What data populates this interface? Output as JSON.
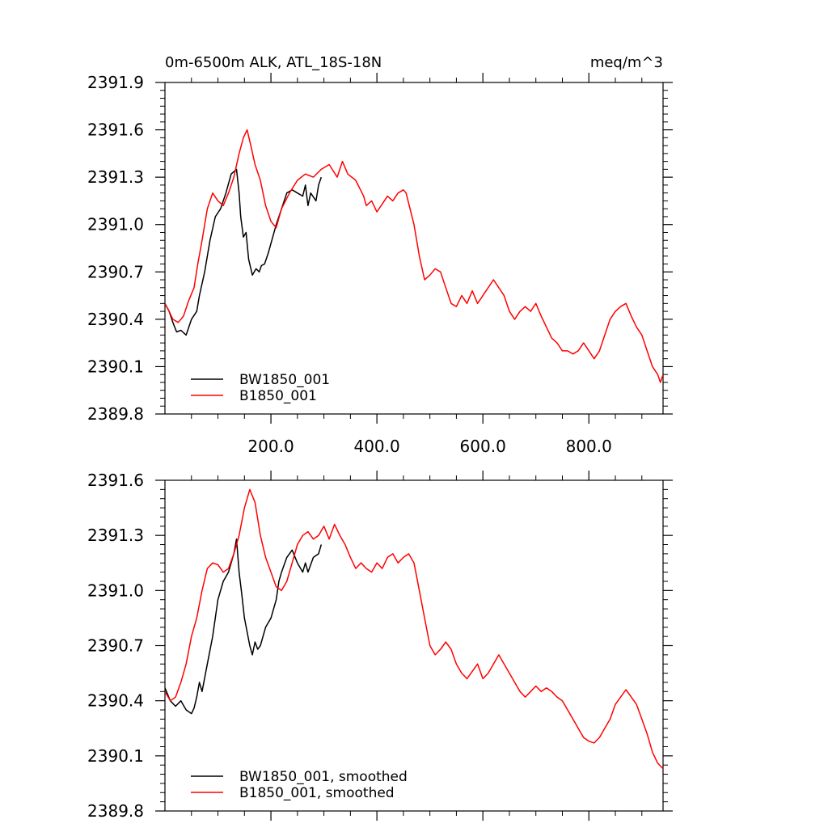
{
  "chart_data": [
    {
      "type": "line",
      "title": "0m-6500m ALK, ATL_18S-18N",
      "units": "meq/m^3",
      "xlim": [
        0,
        940
      ],
      "ylim": [
        2389.8,
        2391.9
      ],
      "x_ticks": [
        200,
        400,
        600,
        800
      ],
      "x_tick_labels": [
        "200.0",
        "400.0",
        "600.0",
        "800.0"
      ],
      "y_ticks": [
        2389.8,
        2390.1,
        2390.4,
        2390.7,
        2391.0,
        2391.3,
        2391.6,
        2391.9
      ],
      "y_tick_labels": [
        "2389.8",
        "2390.1",
        "2390.4",
        "2390.7",
        "2391.0",
        "2391.3",
        "2391.6",
        "2391.9"
      ],
      "legend_position": "bottom-left",
      "series": [
        {
          "name": "BW1850_001",
          "color": "#000000",
          "x": [
            0,
            8,
            15,
            22,
            30,
            40,
            50,
            60,
            65,
            75,
            85,
            95,
            105,
            115,
            125,
            135,
            140,
            143,
            148,
            153,
            158,
            165,
            172,
            178,
            182,
            188,
            195,
            200,
            210,
            220,
            230,
            240,
            250,
            260,
            265,
            270,
            275,
            285,
            290,
            295
          ],
          "y": [
            2390.5,
            2390.45,
            2390.38,
            2390.32,
            2390.33,
            2390.3,
            2390.4,
            2390.45,
            2390.55,
            2390.7,
            2390.9,
            2391.05,
            2391.1,
            2391.2,
            2391.32,
            2391.35,
            2391.2,
            2391.05,
            2390.92,
            2390.95,
            2390.78,
            2390.68,
            2390.72,
            2390.7,
            2390.74,
            2390.75,
            2390.82,
            2390.88,
            2391.0,
            2391.1,
            2391.2,
            2391.22,
            2391.2,
            2391.18,
            2391.25,
            2391.12,
            2391.2,
            2391.15,
            2391.25,
            2391.3
          ]
        },
        {
          "name": "B1850_001",
          "color": "#ff0000",
          "x": [
            0,
            8,
            15,
            25,
            35,
            45,
            55,
            62,
            70,
            80,
            90,
            100,
            110,
            120,
            130,
            140,
            148,
            155,
            162,
            170,
            180,
            190,
            200,
            210,
            220,
            235,
            250,
            265,
            280,
            295,
            310,
            325,
            335,
            345,
            360,
            375,
            380,
            390,
            400,
            410,
            420,
            430,
            440,
            450,
            455,
            470,
            480,
            490,
            500,
            510,
            520,
            530,
            540,
            550,
            560,
            570,
            580,
            590,
            600,
            610,
            620,
            630,
            640,
            650,
            660,
            670,
            680,
            690,
            700,
            710,
            720,
            730,
            740,
            750,
            760,
            770,
            780,
            790,
            800,
            810,
            820,
            830,
            840,
            850,
            860,
            870,
            880,
            890,
            900,
            910,
            920,
            930,
            935,
            940
          ],
          "y": [
            2390.5,
            2390.45,
            2390.4,
            2390.38,
            2390.42,
            2390.52,
            2390.6,
            2390.75,
            2390.9,
            2391.1,
            2391.2,
            2391.15,
            2391.12,
            2391.2,
            2391.3,
            2391.45,
            2391.55,
            2391.6,
            2391.5,
            2391.38,
            2391.28,
            2391.12,
            2391.02,
            2390.98,
            2391.1,
            2391.2,
            2391.28,
            2391.32,
            2391.3,
            2391.35,
            2391.38,
            2391.3,
            2391.4,
            2391.32,
            2391.28,
            2391.18,
            2391.12,
            2391.15,
            2391.08,
            2391.13,
            2391.18,
            2391.15,
            2391.2,
            2391.22,
            2391.2,
            2391.0,
            2390.8,
            2390.65,
            2390.68,
            2390.72,
            2390.7,
            2390.6,
            2390.5,
            2390.48,
            2390.55,
            2390.5,
            2390.58,
            2390.5,
            2390.55,
            2390.6,
            2390.65,
            2390.6,
            2390.55,
            2390.45,
            2390.4,
            2390.45,
            2390.48,
            2390.45,
            2390.5,
            2390.42,
            2390.35,
            2390.28,
            2390.25,
            2390.2,
            2390.2,
            2390.18,
            2390.2,
            2390.25,
            2390.2,
            2390.15,
            2390.2,
            2390.3,
            2390.4,
            2390.45,
            2390.48,
            2390.5,
            2390.42,
            2390.35,
            2390.3,
            2390.2,
            2390.1,
            2390.05,
            2390.0,
            2390.05
          ]
        }
      ]
    },
    {
      "type": "line",
      "xlim": [
        0,
        940
      ],
      "ylim": [
        2389.8,
        2391.6
      ],
      "x_ticks": [
        200,
        400,
        600,
        800
      ],
      "y_ticks": [
        2389.8,
        2390.1,
        2390.4,
        2390.7,
        2391.0,
        2391.3,
        2391.6
      ],
      "y_tick_labels": [
        "2389.8",
        "2390.1",
        "2390.4",
        "2390.7",
        "2391.0",
        "2391.3",
        "2391.6"
      ],
      "legend_position": "bottom-left",
      "series": [
        {
          "name": "BW1850_001, smoothed",
          "color": "#000000",
          "x": [
            0,
            10,
            20,
            30,
            40,
            50,
            55,
            60,
            65,
            70,
            80,
            90,
            100,
            110,
            120,
            130,
            135,
            140,
            145,
            150,
            160,
            165,
            170,
            175,
            180,
            190,
            200,
            210,
            215,
            220,
            230,
            240,
            250,
            260,
            265,
            270,
            280,
            290,
            295
          ],
          "y": [
            2390.47,
            2390.4,
            2390.37,
            2390.4,
            2390.35,
            2390.33,
            2390.36,
            2390.42,
            2390.5,
            2390.45,
            2390.6,
            2390.75,
            2390.95,
            2391.05,
            2391.1,
            2391.2,
            2391.28,
            2391.1,
            2390.98,
            2390.85,
            2390.7,
            2390.65,
            2390.72,
            2390.68,
            2390.7,
            2390.8,
            2390.85,
            2390.95,
            2391.05,
            2391.1,
            2391.18,
            2391.22,
            2391.15,
            2391.1,
            2391.15,
            2391.1,
            2391.18,
            2391.2,
            2391.25
          ]
        },
        {
          "name": "B1850_001, smoothed",
          "color": "#ff0000",
          "x": [
            0,
            10,
            20,
            30,
            40,
            50,
            60,
            70,
            80,
            90,
            100,
            110,
            120,
            130,
            140,
            150,
            160,
            170,
            180,
            190,
            200,
            210,
            220,
            230,
            240,
            250,
            260,
            270,
            280,
            290,
            300,
            310,
            320,
            330,
            340,
            350,
            360,
            370,
            380,
            390,
            400,
            410,
            420,
            430,
            440,
            450,
            460,
            470,
            480,
            490,
            500,
            510,
            520,
            530,
            540,
            550,
            560,
            570,
            580,
            590,
            600,
            610,
            620,
            630,
            640,
            650,
            660,
            670,
            680,
            690,
            700,
            710,
            720,
            730,
            740,
            750,
            760,
            770,
            780,
            790,
            800,
            810,
            820,
            830,
            840,
            850,
            860,
            870,
            880,
            890,
            900,
            910,
            920,
            930,
            940
          ],
          "y": [
            2390.45,
            2390.4,
            2390.42,
            2390.5,
            2390.6,
            2390.75,
            2390.85,
            2391.0,
            2391.12,
            2391.15,
            2391.14,
            2391.1,
            2391.12,
            2391.2,
            2391.3,
            2391.45,
            2391.55,
            2391.48,
            2391.3,
            2391.18,
            2391.1,
            2391.02,
            2391.0,
            2391.05,
            2391.15,
            2391.25,
            2391.3,
            2391.32,
            2391.28,
            2391.3,
            2391.35,
            2391.28,
            2391.36,
            2391.3,
            2391.25,
            2391.18,
            2391.12,
            2391.15,
            2391.12,
            2391.1,
            2391.15,
            2391.12,
            2391.18,
            2391.2,
            2391.15,
            2391.18,
            2391.2,
            2391.15,
            2391.0,
            2390.85,
            2390.7,
            2390.65,
            2390.68,
            2390.72,
            2390.68,
            2390.6,
            2390.55,
            2390.52,
            2390.56,
            2390.6,
            2390.52,
            2390.55,
            2390.6,
            2390.65,
            2390.6,
            2390.55,
            2390.5,
            2390.45,
            2390.42,
            2390.45,
            2390.48,
            2390.45,
            2390.47,
            2390.45,
            2390.42,
            2390.4,
            2390.35,
            2390.3,
            2390.25,
            2390.2,
            2390.18,
            2390.17,
            2390.2,
            2390.25,
            2390.3,
            2390.38,
            2390.42,
            2390.46,
            2390.42,
            2390.38,
            2390.3,
            2390.22,
            2390.12,
            2390.06,
            2390.03
          ]
        }
      ]
    }
  ]
}
